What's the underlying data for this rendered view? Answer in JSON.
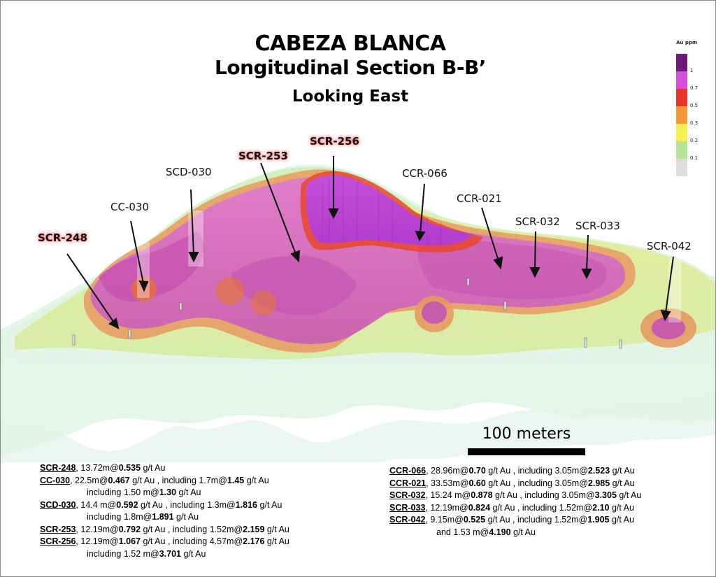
{
  "title": {
    "line1": "CABEZA BLANCA",
    "line2": "Longitudinal Section B-B’",
    "line3": "Looking East"
  },
  "legend": {
    "title": "Au ppm",
    "items": [
      {
        "label": "1",
        "color": "#6e1a78"
      },
      {
        "label": "0.7",
        "color": "#d34fd8"
      },
      {
        "label": "0.5",
        "color": "#e8352a"
      },
      {
        "label": "0.3",
        "color": "#f09a3c"
      },
      {
        "label": "0.2",
        "color": "#f4ef52"
      },
      {
        "label": "0.1",
        "color": "#b6e39a"
      },
      {
        "label": "",
        "color": "#dcdcdc"
      }
    ]
  },
  "drill_holes": [
    {
      "id": "SCR-248",
      "highlight": true
    },
    {
      "id": "CC-030",
      "highlight": false
    },
    {
      "id": "SCD-030",
      "highlight": false
    },
    {
      "id": "SCR-253",
      "highlight": true
    },
    {
      "id": "SCR-256",
      "highlight": true
    },
    {
      "id": "CCR-066",
      "highlight": false
    },
    {
      "id": "CCR-021",
      "highlight": false
    },
    {
      "id": "SCR-032",
      "highlight": false
    },
    {
      "id": "SCR-033",
      "highlight": false
    },
    {
      "id": "SCR-042",
      "highlight": false
    }
  ],
  "scale_bar": {
    "label": "100 meters"
  },
  "results_left": [
    {
      "id": "SCR-248",
      "main": ", 13.72m@",
      "grade": "0.535",
      "unit": "  g/t Au",
      "inc": []
    },
    {
      "id": "CC-030",
      "main": ", 22.5m@",
      "grade": "0.467",
      "unit": " g/t Au , including 1.7m@",
      "grade2": "1.45",
      "unit2": " g/t Au",
      "inc": [
        {
          "pre": "including 1.50 m@",
          "grade": "1.30",
          "unit": " g/t Au"
        }
      ]
    },
    {
      "id": "SCD-030",
      "main": ", 14.4 m@",
      "grade": "0.592",
      "unit": " g/t Au , including 1.3m@",
      "grade2": "1.816",
      "unit2": " g/t Au",
      "inc": [
        {
          "pre": "including 1.8m@",
          "grade": "1.891",
          "unit": " g/t Au"
        }
      ]
    },
    {
      "id": "SCR-253",
      "main": ", 12.19m@",
      "grade": "0.792",
      "unit": " g/t Au , including 1.52m@",
      "grade2": "2.159",
      "unit2": " g/t Au",
      "inc": []
    },
    {
      "id": "SCR-256",
      "main": ", 12.19m@",
      "grade": "1.067",
      "unit": "  g/t Au , including 4.57m@",
      "grade2": "2.176",
      "unit2": " g/t Au",
      "inc": [
        {
          "pre": "including 1.52 m@",
          "grade": "3.701",
          "unit": "  g/t Au"
        }
      ]
    }
  ],
  "results_right": [
    {
      "id": "CCR-066",
      "main": ", 28.96m@",
      "grade": "0.70",
      "unit": " g/t Au  , including 3.05m@",
      "grade2": "2.523",
      "unit2": " g/t Au",
      "inc": []
    },
    {
      "id": "CCR-021",
      "main": ", 33.53m@",
      "grade": "0.60",
      "unit": " g/t Au , including 3.05m@",
      "grade2": "2.985",
      "unit2": " g/t Au",
      "inc": []
    },
    {
      "id": "SCR-032",
      "main": ", 15.24 m@",
      "grade": "0.878",
      "unit": " g/t Au , including 3.05m@",
      "grade2": "3.305",
      "unit2": " g/t Au",
      "inc": []
    },
    {
      "id": "SCR-033",
      "main": ", 12.19m@",
      "grade": "0.824",
      "unit": " g/t Au , including 1.52m@",
      "grade2": "2.10",
      "unit2": " g/t Au",
      "inc": []
    },
    {
      "id": "SCR-042",
      "main": ", 9.15m@",
      "grade": "0.525",
      "unit": " g/t Au , including 1.52m@",
      "grade2": "1.905",
      "unit2": " g/t Au",
      "inc": [
        {
          "pre": "and 1.53 m@",
          "grade": "4.190",
          "unit": " g/t Au"
        }
      ]
    }
  ]
}
